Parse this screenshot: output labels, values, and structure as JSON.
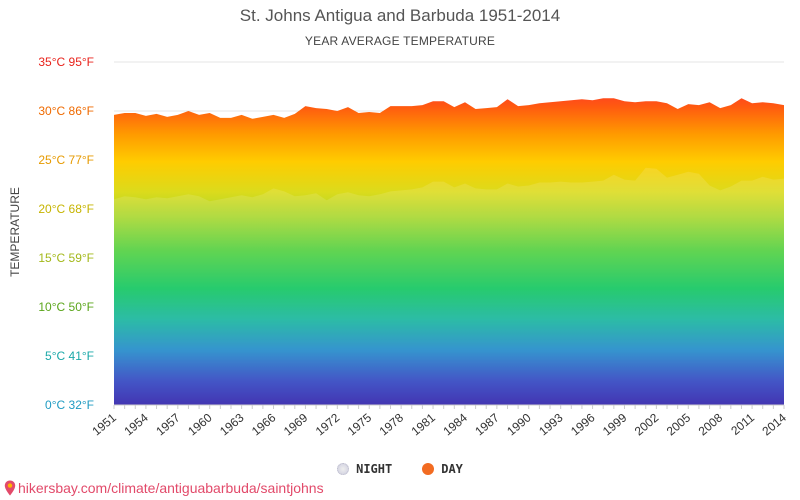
{
  "chart_data": {
    "type": "area",
    "title": "St. Johns Antigua and Barbuda 1951-2014",
    "subtitle": "YEAR AVERAGE TEMPERATURE",
    "ylabel": "TEMPERATURE",
    "ylim": [
      0,
      35
    ],
    "yticks": [
      {
        "value": 0,
        "label": "0°C 32°F",
        "color": "#1f9bc2"
      },
      {
        "value": 5,
        "label": "5°C 41°F",
        "color": "#1aa8a8"
      },
      {
        "value": 10,
        "label": "10°C 50°F",
        "color": "#5aa51a"
      },
      {
        "value": 15,
        "label": "15°C 59°F",
        "color": "#a3b81a"
      },
      {
        "value": 20,
        "label": "20°C 68°F",
        "color": "#c6b400"
      },
      {
        "value": 25,
        "label": "25°C 77°F",
        "color": "#e69a00"
      },
      {
        "value": 30,
        "label": "30°C 86°F",
        "color": "#ef6a00"
      },
      {
        "value": 35,
        "label": "35°C 95°F",
        "color": "#e8221b"
      }
    ],
    "x_tick_labels": [
      "1951",
      "1954",
      "1957",
      "1960",
      "1963",
      "1966",
      "1969",
      "1972",
      "1975",
      "1978",
      "1981",
      "1984",
      "1987",
      "1990",
      "1993",
      "1996",
      "1999",
      "2002",
      "2005",
      "2008",
      "2011",
      "2014"
    ],
    "x": [
      1951,
      1952,
      1953,
      1954,
      1955,
      1956,
      1957,
      1958,
      1959,
      1960,
      1961,
      1962,
      1963,
      1964,
      1965,
      1966,
      1967,
      1968,
      1969,
      1970,
      1971,
      1972,
      1973,
      1974,
      1975,
      1976,
      1977,
      1978,
      1979,
      1980,
      1981,
      1982,
      1983,
      1984,
      1985,
      1986,
      1987,
      1988,
      1989,
      1990,
      1991,
      1992,
      1993,
      1994,
      1995,
      1996,
      1997,
      1998,
      1999,
      2000,
      2001,
      2002,
      2003,
      2004,
      2005,
      2006,
      2007,
      2008,
      2009,
      2010,
      2011,
      2012,
      2013,
      2014
    ],
    "series": [
      {
        "name": "DAY",
        "color": "#f26b21",
        "values": [
          29.6,
          29.8,
          29.8,
          29.5,
          29.7,
          29.4,
          29.6,
          30.0,
          29.6,
          29.8,
          29.3,
          29.3,
          29.6,
          29.2,
          29.4,
          29.6,
          29.3,
          29.7,
          30.5,
          30.3,
          30.2,
          30.0,
          30.4,
          29.8,
          29.9,
          29.8,
          30.5,
          30.5,
          30.5,
          30.6,
          31.0,
          31.0,
          30.4,
          30.9,
          30.2,
          30.3,
          30.4,
          31.2,
          30.5,
          30.6,
          30.8,
          30.9,
          31.0,
          31.1,
          31.2,
          31.1,
          31.3,
          31.3,
          31.0,
          30.9,
          31.0,
          31.0,
          30.8,
          30.2,
          30.7,
          30.6,
          30.9,
          30.3,
          30.6,
          31.3,
          30.8,
          30.9,
          30.8,
          30.6
        ]
      },
      {
        "name": "NIGHT",
        "color": "#d9d9e4",
        "values": [
          21.0,
          21.3,
          21.2,
          21.0,
          21.2,
          21.1,
          21.3,
          21.5,
          21.3,
          20.8,
          21.0,
          21.2,
          21.4,
          21.2,
          21.5,
          22.1,
          21.8,
          21.3,
          21.4,
          21.6,
          20.9,
          21.5,
          21.7,
          21.4,
          21.3,
          21.5,
          21.8,
          21.9,
          22.0,
          22.2,
          22.8,
          22.8,
          22.2,
          22.6,
          22.1,
          22.0,
          22.0,
          22.6,
          22.3,
          22.4,
          22.7,
          22.7,
          22.8,
          22.7,
          22.7,
          22.8,
          22.9,
          23.5,
          23.0,
          22.9,
          24.2,
          24.1,
          23.2,
          23.5,
          23.8,
          23.6,
          22.4,
          21.9,
          22.3,
          22.9,
          22.9,
          23.3,
          23.0,
          23.1
        ]
      }
    ],
    "grid": true,
    "legend": {
      "position": "bottom",
      "items": [
        {
          "label": "NIGHT"
        },
        {
          "label": "DAY"
        }
      ]
    }
  },
  "source": {
    "url": "hikersbay.com/climate/antiguabarbuda/saintjohns",
    "icon": "location-pin-icon"
  }
}
